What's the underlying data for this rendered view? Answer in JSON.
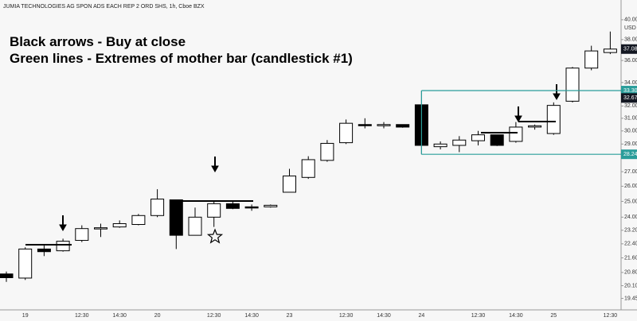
{
  "chart_data": {
    "type": "candlestick",
    "title": "JUMIA TECHNOLOGIES AG SPON ADS EACH REP 2 ORD SHS, 1h, Cboe BZX",
    "annotations": [
      "Black arrows - Buy at close",
      "Green lines - Extremes of mother bar (candlestick #1)"
    ],
    "currency": "USD",
    "categories": [
      null,
      "19",
      null,
      null,
      "12:30",
      null,
      "14:30",
      null,
      "20",
      null,
      null,
      "12:30",
      null,
      "14:30",
      null,
      "23",
      null,
      null,
      "12:30",
      null,
      "14:30",
      null,
      "24",
      null,
      null,
      "12:30",
      null,
      "14:30",
      null,
      "25",
      null,
      null,
      "12:30"
    ],
    "open": [
      20.72,
      20.5,
      22.1,
      22.0,
      22.6,
      23.3,
      23.4,
      23.55,
      24.1,
      25.1,
      22.9,
      24.0,
      24.85,
      24.65,
      24.65,
      25.6,
      26.6,
      27.8,
      29.1,
      30.5,
      30.45,
      30.5,
      32.1,
      28.8,
      28.9,
      29.25,
      29.7,
      29.2,
      30.3,
      29.8,
      32.4,
      35.3,
      36.75
    ],
    "high": [
      20.85,
      22.2,
      22.3,
      22.7,
      23.5,
      23.6,
      23.8,
      24.2,
      25.8,
      25.1,
      24.6,
      25.0,
      25.0,
      24.8,
      24.8,
      27.2,
      28.1,
      29.3,
      30.9,
      31.0,
      30.7,
      30.5,
      33.3,
      29.2,
      29.6,
      30.0,
      29.7,
      30.7,
      30.5,
      32.3,
      35.4,
      37.4,
      38.8
    ],
    "low": [
      20.3,
      20.4,
      21.7,
      21.95,
      22.5,
      22.8,
      23.35,
      23.5,
      24.0,
      22.1,
      22.9,
      23.4,
      24.5,
      24.4,
      24.6,
      25.6,
      26.5,
      27.7,
      29.0,
      30.2,
      30.2,
      30.25,
      28.24,
      28.6,
      28.4,
      28.9,
      28.85,
      29.1,
      30.1,
      29.7,
      32.3,
      35.1,
      36.6
    ],
    "close": [
      20.52,
      22.1,
      21.95,
      22.55,
      23.3,
      23.35,
      23.6,
      24.1,
      25.15,
      22.9,
      24.0,
      24.85,
      24.55,
      24.6,
      24.75,
      26.7,
      27.85,
      29.05,
      30.6,
      30.45,
      30.5,
      30.3,
      28.9,
      29.0,
      29.3,
      29.7,
      28.9,
      30.3,
      30.4,
      32.05,
      35.3,
      36.9,
      37.08
    ],
    "up_color": "#ffffff",
    "down_color": "#000000",
    "level_color": "#2a9d9a",
    "log_scale": true,
    "ylim": [
      18.88,
      42.1
    ],
    "yticks": [
      {
        "value": 40,
        "label": "40.00"
      },
      {
        "value": 38,
        "label": "38.00"
      },
      {
        "value": 36,
        "label": "36.00"
      },
      {
        "value": 34,
        "label": "34.00"
      },
      {
        "value": 32,
        "label": "32.00"
      },
      {
        "value": 31,
        "label": "31.00"
      },
      {
        "value": 30,
        "label": "30.00"
      },
      {
        "value": 29,
        "label": "29.00"
      },
      {
        "value": 27,
        "label": "27.00"
      },
      {
        "value": 26,
        "label": "26.00"
      },
      {
        "value": 25,
        "label": "25.00"
      },
      {
        "value": 24,
        "label": "24.00"
      },
      {
        "value": 23.2,
        "label": "23.20"
      },
      {
        "value": 22.4,
        "label": "22.40"
      },
      {
        "value": 21.6,
        "label": "21.60"
      },
      {
        "value": 20.8,
        "label": "20.80"
      },
      {
        "value": 20.1,
        "label": "20.10"
      },
      {
        "value": 19.45,
        "label": "19.45"
      }
    ],
    "price_labels": [
      {
        "value": 37.08,
        "label": "37.08",
        "color": "#131722"
      },
      {
        "value": 33.3,
        "label": "33.30",
        "color": "#2a9d9a"
      },
      {
        "value": 32.67,
        "label": "32.67",
        "color": "#131722"
      },
      {
        "value": 28.24,
        "label": "28.24",
        "color": "#2a9d9a"
      }
    ],
    "mother_bar": 22
  }
}
